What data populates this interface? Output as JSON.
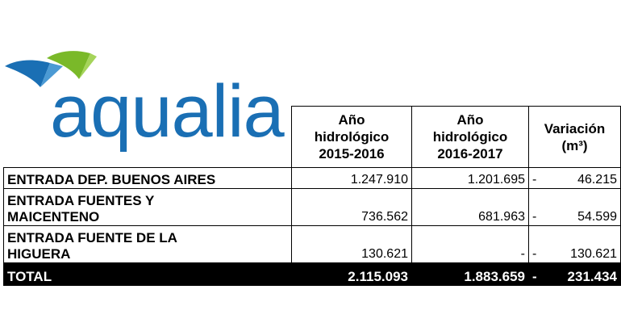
{
  "logo": {
    "text": "aqualia"
  },
  "table": {
    "headers": {
      "col1": [
        "Año",
        "hidrológico",
        "2015-2016"
      ],
      "col2": [
        "Año",
        "hidrológico",
        "2016-2017"
      ],
      "col3": [
        "Variación",
        "(m³)"
      ]
    },
    "rows": [
      {
        "label": [
          "ENTRADA DEP. BUENOS AIRES"
        ],
        "v1": "1.247.910",
        "v2": "1.201.695",
        "sign": "-",
        "var": "46.215"
      },
      {
        "label": [
          "ENTRADA FUENTES Y",
          "MAICENTENO"
        ],
        "v1": "736.562",
        "v2": "681.963",
        "sign": "-",
        "var": "54.599"
      },
      {
        "label": [
          "ENTRADA FUENTE DE LA",
          "HIGUERA"
        ],
        "v1": "130.621",
        "v2": "-",
        "sign": "-",
        "var": "130.621"
      }
    ],
    "total": {
      "label": "TOTAL",
      "v1": "2.115.093",
      "v2": "1.883.659",
      "sign": "-",
      "var": "231.434"
    }
  },
  "colors": {
    "logo_blue": "#1a6fb4",
    "logo_green": "#7ab929",
    "total_bg": "#000000"
  }
}
